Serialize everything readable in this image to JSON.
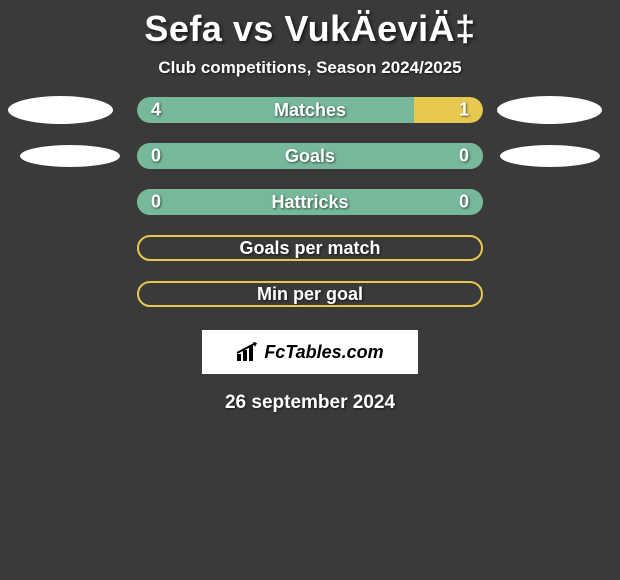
{
  "header": {
    "title": "Sefa vs VukÄeviÄ‡",
    "subtitle": "Club competitions, Season 2024/2025"
  },
  "colors": {
    "background": "#3a3a3a",
    "text": "#ffffff",
    "oval": "#ffffff",
    "accent_yellow": "#e7c850",
    "accent_green": "#77b89a",
    "bar_green_border": "#6aa98b"
  },
  "stats": [
    {
      "label": "Matches",
      "left_value": "4",
      "right_value": "1",
      "left_pct": 80,
      "right_pct": 20,
      "left_color": "#77b89a",
      "right_color": "#e7c850",
      "show_ovals": true,
      "oval_size": "large"
    },
    {
      "label": "Goals",
      "left_value": "0",
      "right_value": "0",
      "left_pct": 50,
      "right_pct": 50,
      "left_color": "#77b89a",
      "right_color": "#77b89a",
      "show_ovals": true,
      "oval_size": "small"
    },
    {
      "label": "Hattricks",
      "left_value": "0",
      "right_value": "0",
      "left_pct": 50,
      "right_pct": 50,
      "left_color": "#77b89a",
      "right_color": "#77b89a",
      "show_ovals": false
    },
    {
      "label": "Goals per match",
      "left_value": "",
      "right_value": "",
      "left_pct": 0,
      "right_pct": 0,
      "left_color": "#e7c850",
      "right_color": "#e7c850",
      "outline_only": true,
      "outline_color": "#e7c850",
      "show_ovals": false
    },
    {
      "label": "Min per goal",
      "left_value": "",
      "right_value": "",
      "left_pct": 0,
      "right_pct": 0,
      "left_color": "#e7c850",
      "right_color": "#e7c850",
      "outline_only": true,
      "outline_color": "#e7c850",
      "show_ovals": false
    }
  ],
  "footer": {
    "logo_text": "FcTables.com",
    "date": "26 september 2024"
  }
}
